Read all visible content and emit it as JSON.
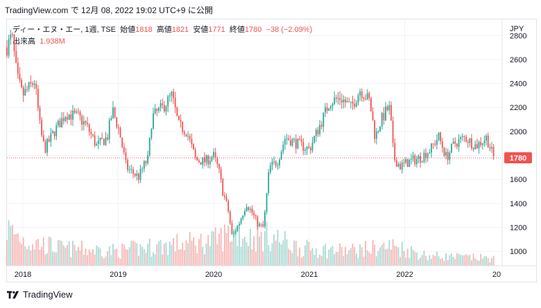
{
  "header": {
    "text": "TradingView.com で 12月 08, 2022 19:02 UTC+9 に公開"
  },
  "legend": {
    "symbol": "ディー・エヌ・エー, 1週, TSE",
    "open_label": "始値",
    "open": "1818",
    "high_label": "高値",
    "high": "1821",
    "low_label": "安値",
    "low": "1771",
    "close_label": "終値",
    "close": "1780",
    "change": "−38 (−2.09%)",
    "volume_label": "出来高",
    "volume": "1.938M"
  },
  "footer": {
    "brand": "TradingView"
  },
  "colors": {
    "up": "#26a69a",
    "down": "#ef5350",
    "up_vol": "#a8d9d3",
    "down_vol": "#f7b5b4",
    "grid": "#f0f3fa",
    "axis": "#e0e3eb"
  },
  "chart_data": {
    "type": "candlestick",
    "interval": "1週",
    "currency": "JPY",
    "y_ticks": [
      1000,
      1200,
      1400,
      1600,
      1800,
      2000,
      2200,
      2400,
      2600,
      2800
    ],
    "ylim": [
      880,
      2940
    ],
    "x_ticks": [
      "2018",
      "2019",
      "2020",
      "2021",
      "2022",
      "20"
    ],
    "last_price": 1780,
    "last_price_label": "1780",
    "price_path": [
      [
        "2017-11-01",
        2700
      ],
      [
        "2017-11-20",
        2800
      ],
      [
        "2017-12-10",
        2450
      ],
      [
        "2017-12-31",
        2300
      ],
      [
        "2018-02-15",
        2420
      ],
      [
        "2018-03-10",
        2000
      ],
      [
        "2018-03-25",
        1850
      ],
      [
        "2018-05-01",
        2000
      ],
      [
        "2018-06-15",
        2150
      ],
      [
        "2018-08-01",
        2120
      ],
      [
        "2018-09-01",
        2050
      ],
      [
        "2018-10-10",
        1880
      ],
      [
        "2018-11-20",
        1950
      ],
      [
        "2018-12-10",
        2180
      ],
      [
        "2019-01-05",
        2000
      ],
      [
        "2019-02-01",
        1700
      ],
      [
        "2019-03-01",
        1650
      ],
      [
        "2019-03-20",
        1620
      ],
      [
        "2019-04-10",
        1720
      ],
      [
        "2019-04-25",
        1770
      ],
      [
        "2019-05-10",
        2120
      ],
      [
        "2019-06-20",
        2200
      ],
      [
        "2019-07-25",
        2300
      ],
      [
        "2019-08-20",
        2050
      ],
      [
        "2019-09-20",
        2000
      ],
      [
        "2019-10-25",
        1760
      ],
      [
        "2019-11-30",
        1750
      ],
      [
        "2019-12-31",
        1800
      ],
      [
        "2020-01-20",
        1680
      ],
      [
        "2020-02-05",
        1500
      ],
      [
        "2020-02-25",
        1350
      ],
      [
        "2020-03-12",
        1120
      ],
      [
        "2020-04-10",
        1250
      ],
      [
        "2020-05-05",
        1400
      ],
      [
        "2020-05-25",
        1330
      ],
      [
        "2020-06-20",
        1220
      ],
      [
        "2020-07-10",
        1200
      ],
      [
        "2020-08-01",
        1700
      ],
      [
        "2020-09-01",
        1750
      ],
      [
        "2020-10-01",
        1950
      ],
      [
        "2020-11-15",
        1900
      ],
      [
        "2021-01-01",
        1850
      ],
      [
        "2021-02-20",
        2100
      ],
      [
        "2021-03-20",
        2250
      ],
      [
        "2021-05-01",
        2280
      ],
      [
        "2021-06-10",
        2200
      ],
      [
        "2021-07-15",
        2350
      ],
      [
        "2021-08-20",
        2250
      ],
      [
        "2021-09-10",
        1950
      ],
      [
        "2021-09-30",
        2080
      ],
      [
        "2021-10-25",
        2180
      ],
      [
        "2021-11-05",
        2190
      ],
      [
        "2021-11-20",
        1780
      ],
      [
        "2021-12-15",
        1710
      ],
      [
        "2022-01-20",
        1750
      ],
      [
        "2022-03-01",
        1780
      ],
      [
        "2022-04-10",
        1850
      ],
      [
        "2022-05-10",
        1960
      ],
      [
        "2022-06-10",
        1780
      ],
      [
        "2022-07-10",
        1900
      ],
      [
        "2022-08-20",
        1950
      ],
      [
        "2022-10-01",
        1880
      ],
      [
        "2022-11-10",
        1950
      ],
      [
        "2022-12-08",
        1780
      ]
    ],
    "volume_profile": [
      [
        "2017-11-01",
        0.75
      ],
      [
        "2018-01-15",
        0.5
      ],
      [
        "2018-06-01",
        0.35
      ],
      [
        "2019-01-01",
        0.3
      ],
      [
        "2019-06-01",
        0.4
      ],
      [
        "2020-01-01",
        0.5
      ],
      [
        "2020-03-20",
        0.7
      ],
      [
        "2020-06-01",
        0.55
      ],
      [
        "2020-08-01",
        0.6
      ],
      [
        "2020-12-01",
        0.35
      ],
      [
        "2021-06-01",
        0.3
      ],
      [
        "2021-11-20",
        0.4
      ],
      [
        "2022-04-01",
        0.2
      ],
      [
        "2022-12-08",
        0.15
      ]
    ]
  }
}
